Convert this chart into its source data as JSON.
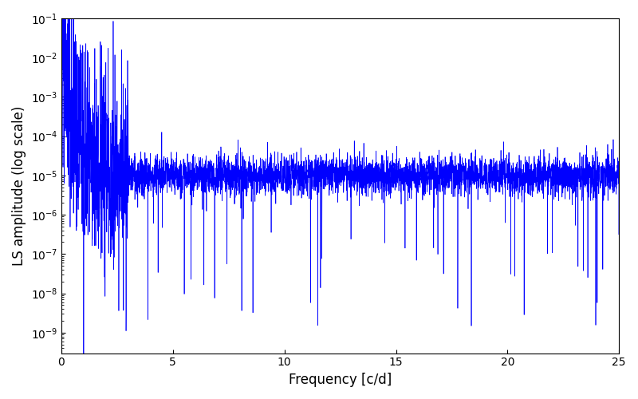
{
  "title": "",
  "xlabel": "Frequency [c/d]",
  "ylabel": "LS amplitude (log scale)",
  "xlim": [
    0,
    25
  ],
  "ylim": [
    3e-10,
    0.1
  ],
  "line_color": "#0000ff",
  "line_width": 0.5,
  "background_color": "#ffffff",
  "figsize": [
    8.0,
    5.0
  ],
  "dpi": 100,
  "n_points": 5000,
  "freq_max": 25.0,
  "seed": 7,
  "noise_floor_log": -5.0,
  "peak_log": -1.7,
  "decay_rate": 1.6,
  "log_noise_sigma": 0.8,
  "n_deep_dips": 80,
  "dip_depth_min": -4,
  "dip_depth_max": -9
}
